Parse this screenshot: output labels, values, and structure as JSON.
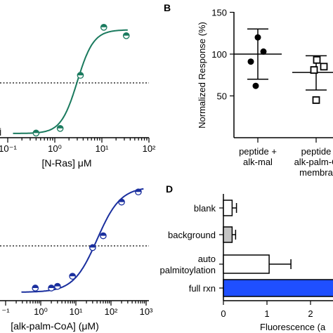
{
  "chart_data": [
    {
      "panel": "A",
      "type": "scatter",
      "title": "",
      "xlabel": "[N-Ras] μM",
      "ylabel": "",
      "xscale": "log",
      "xlim": [
        0.1,
        100
      ],
      "ylim": [
        -5,
        135
      ],
      "xticks": [
        {
          "value": 0.1,
          "label": "10⁻¹"
        },
        {
          "value": 1,
          "label": "10⁰"
        },
        {
          "value": 10,
          "label": "10¹"
        },
        {
          "value": 100,
          "label": "10²"
        }
      ],
      "partial_text": [
        "İ"
      ],
      "reference_line": {
        "y": 60,
        "style": "dotted"
      },
      "color": "#1a7a5e",
      "fit": {
        "model": "logistic",
        "bottom": 0,
        "top": 123,
        "ec50": 3,
        "hill": 2.5
      },
      "points": [
        {
          "x": 0.4,
          "y": 0.5
        },
        {
          "x": 1.3,
          "y": 6
        },
        {
          "x": 3.5,
          "y": 69
        },
        {
          "x": 11,
          "y": 126
        },
        {
          "x": 33,
          "y": 116
        }
      ]
    },
    {
      "panel": "B",
      "type": "scatter",
      "title": "",
      "xlabel": "",
      "ylabel": "Normalized Response (%)",
      "ylim": [
        0,
        150
      ],
      "yticks": [
        {
          "value": 50,
          "label": "50"
        },
        {
          "value": 100,
          "label": "100"
        },
        {
          "value": 150,
          "label": "150"
        }
      ],
      "categories": [
        {
          "lines": [
            "peptide +",
            "alk-mal"
          ],
          "mean": 100,
          "err_low": 70,
          "err_high": 130,
          "marker": "circle-filled",
          "points": [
            {
              "y": 120
            },
            {
              "y": 103
            },
            {
              "y": 91
            },
            {
              "y": 62
            }
          ]
        },
        {
          "lines": [
            "peptide",
            "alk-palm-C",
            "membra"
          ],
          "mean": 78,
          "err_low": 57,
          "err_high": 98,
          "marker": "square-open",
          "points": [
            {
              "y": 93
            },
            {
              "y": 85
            },
            {
              "y": 81
            },
            {
              "y": 45
            }
          ]
        }
      ]
    },
    {
      "panel": "C",
      "type": "scatter",
      "title": "",
      "xlabel": "[alk-palm-CoA] (μM)",
      "ylabel": "",
      "xscale": "log",
      "xlim": [
        0.1,
        1000
      ],
      "ylim": [
        -5,
        135
      ],
      "xticks": [
        {
          "value": 0.1,
          "label": "⁻¹"
        },
        {
          "value": 1,
          "label": "10⁰"
        },
        {
          "value": 10,
          "label": "10¹"
        },
        {
          "value": 100,
          "label": "10²"
        },
        {
          "value": 1000,
          "label": "10³"
        }
      ],
      "reference_line": {
        "y": 60,
        "style": "dotted"
      },
      "color": "#1a2f9e",
      "fit": {
        "model": "logistic",
        "bottom": 5,
        "top": 130,
        "ec50": 40,
        "hill": 1.3
      },
      "points": [
        {
          "x": 0.7,
          "y": 10
        },
        {
          "x": 2,
          "y": 10
        },
        {
          "x": 3,
          "y": 12
        },
        {
          "x": 8,
          "y": 24
        },
        {
          "x": 30,
          "y": 58
        },
        {
          "x": 60,
          "y": 72
        },
        {
          "x": 200,
          "y": 112
        },
        {
          "x": 600,
          "y": 124
        }
      ]
    },
    {
      "panel": "D",
      "type": "bar",
      "orientation": "horizontal",
      "title": "",
      "xlabel": "Fluorescence (a",
      "ylabel": "",
      "xlim": [
        0,
        2.6
      ],
      "xticks": [
        {
          "value": 0,
          "label": "0"
        },
        {
          "value": 1,
          "label": "1"
        },
        {
          "value": 2,
          "label": "2"
        }
      ],
      "categories": [
        {
          "lines": [
            "blank"
          ],
          "value": 0.2,
          "err": 0.1,
          "fill": "#ffffff"
        },
        {
          "lines": [
            "background"
          ],
          "value": 0.2,
          "err": 0.08,
          "fill": "#c4c4c4"
        },
        {
          "lines": [
            "auto",
            "palmitoylation"
          ],
          "value": 1.05,
          "err": 0.5,
          "fill": "#ffffff"
        },
        {
          "lines": [
            "full rxn"
          ],
          "value": 3.2,
          "err": 0,
          "fill": "#1f4fff"
        }
      ]
    }
  ],
  "panel_labels": {
    "b": "B",
    "d": "D"
  }
}
